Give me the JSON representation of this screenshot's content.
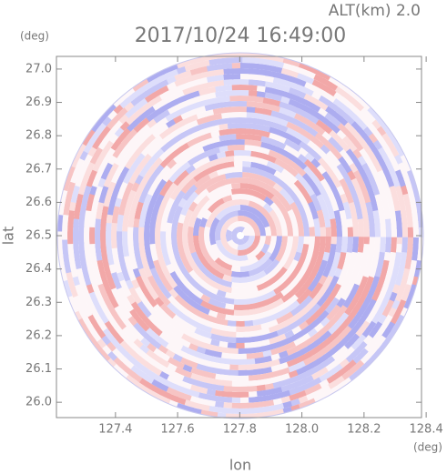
{
  "chart_data": {
    "type": "radar-ppi",
    "title": "2017/10/24 16:49:00",
    "altitude_label": "ALT(km) 2.0",
    "x_label": "lon",
    "y_label": "lat",
    "x_unit": "(deg)",
    "y_unit": "(deg)",
    "xlim": [
      127.21,
      128.385
    ],
    "ylim": [
      25.954,
      27.038
    ],
    "xticks": [
      127.4,
      127.6,
      127.8,
      {
        "value": 128,
        "label": "128.0"
      },
      128.2,
      128.4
    ],
    "yticks": [
      {
        "value": 26,
        "label": "26.0"
      },
      26.1,
      26.2,
      26.3,
      26.4,
      26.5,
      26.6,
      26.7,
      26.8,
      26.9,
      {
        "value": 27,
        "label": "27.0"
      }
    ]
  }
}
